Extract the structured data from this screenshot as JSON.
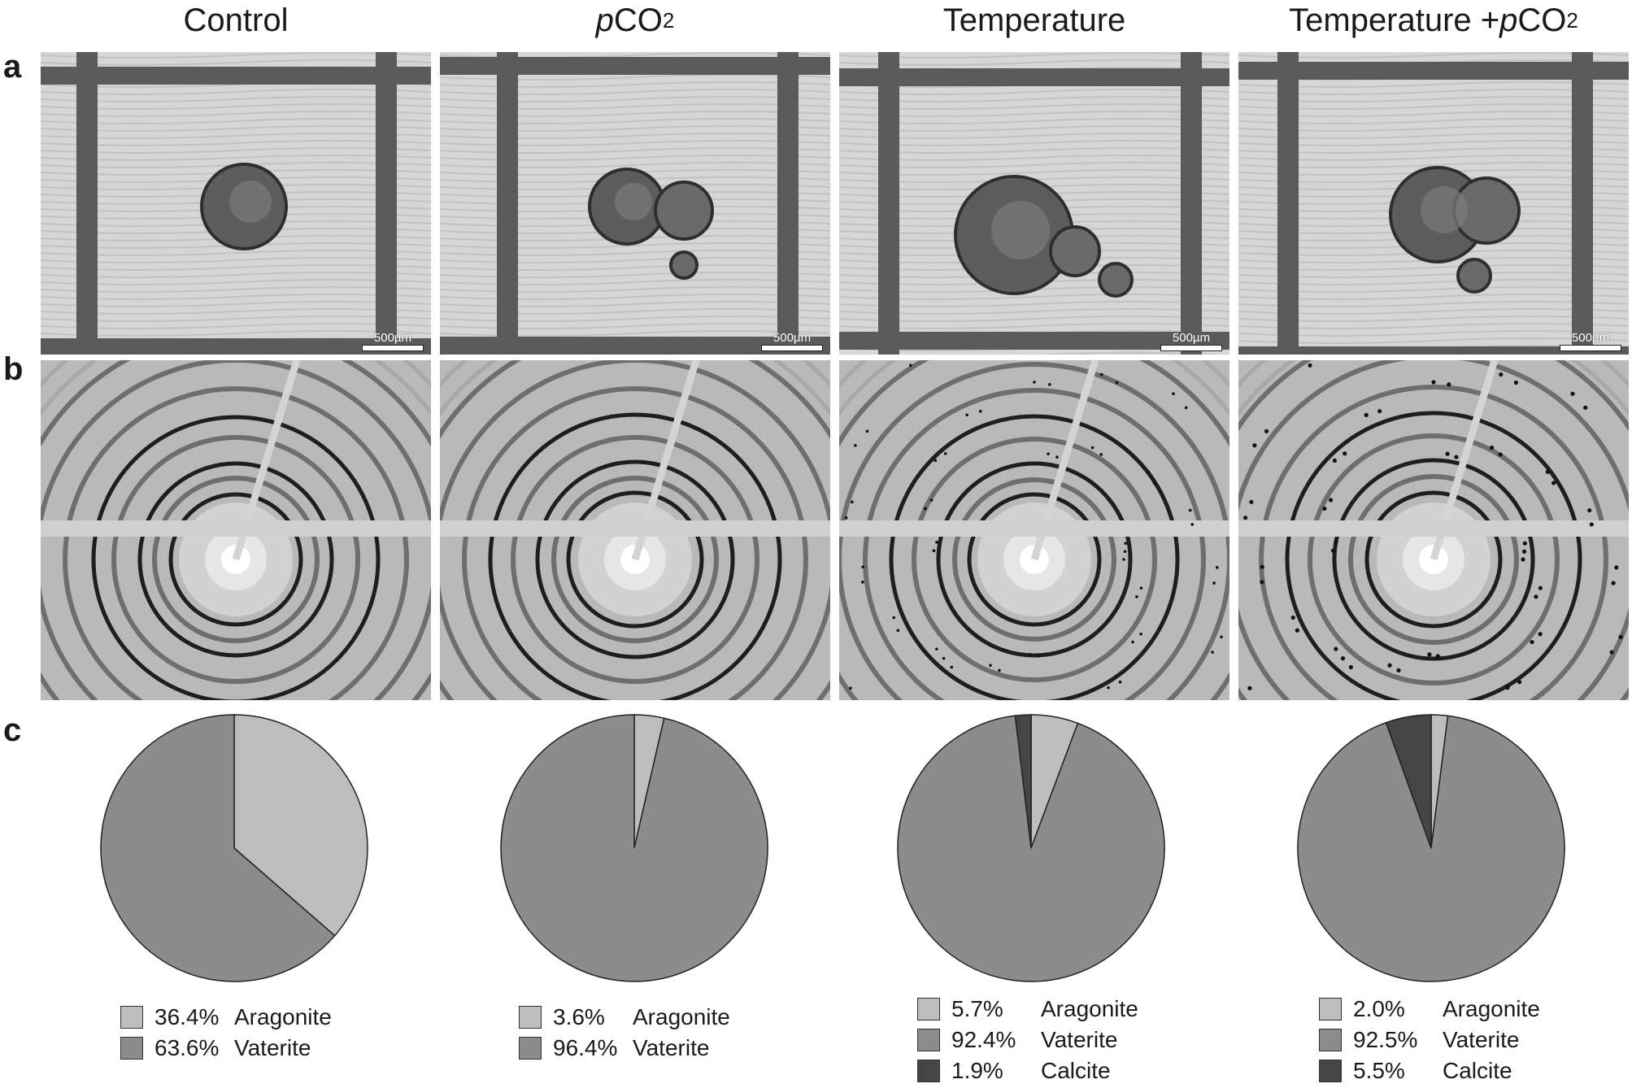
{
  "columns": [
    {
      "title_parts": [
        {
          "text": "Control",
          "italic": false
        }
      ],
      "sub": ""
    },
    {
      "title_parts": [
        {
          "text": "p",
          "italic": true
        },
        {
          "text": "CO",
          "italic": false
        }
      ],
      "sub": "2"
    },
    {
      "title_parts": [
        {
          "text": "Temperature",
          "italic": false
        }
      ],
      "sub": ""
    },
    {
      "title_parts": [
        {
          "text": "Temperature + ",
          "italic": false
        },
        {
          "text": "p",
          "italic": true
        },
        {
          "text": "CO",
          "italic": false
        }
      ],
      "sub": "2"
    }
  ],
  "row_labels": {
    "a": "a",
    "b": "b",
    "c": "c"
  },
  "scale_bar": "500µm",
  "colors": {
    "aragonite": "#bdbdbd",
    "vaterite": "#8c8c8c",
    "calcite": "#454545"
  },
  "chart_data": [
    {
      "type": "pie",
      "title": "",
      "slices": [
        {
          "label": "Aragonite",
          "pct_text": "36.4%",
          "value": 36.4,
          "color": "#bdbdbd"
        },
        {
          "label": "Vaterite",
          "pct_text": "63.6%",
          "value": 63.6,
          "color": "#8c8c8c"
        }
      ]
    },
    {
      "type": "pie",
      "title": "",
      "slices": [
        {
          "label": "Aragonite",
          "pct_text": "3.6%",
          "value": 3.6,
          "color": "#bdbdbd"
        },
        {
          "label": "Vaterite",
          "pct_text": "96.4%",
          "value": 96.4,
          "color": "#8c8c8c"
        }
      ]
    },
    {
      "type": "pie",
      "title": "",
      "slices": [
        {
          "label": "Aragonite",
          "pct_text": "5.7%",
          "value": 5.7,
          "color": "#bdbdbd"
        },
        {
          "label": "Vaterite",
          "pct_text": "92.4%",
          "value": 92.4,
          "color": "#8c8c8c"
        },
        {
          "label": "Calcite",
          "pct_text": "1.9%",
          "value": 1.9,
          "color": "#454545"
        }
      ]
    },
    {
      "type": "pie",
      "title": "",
      "slices": [
        {
          "label": "Aragonite",
          "pct_text": "2.0%",
          "value": 2.0,
          "color": "#bdbdbd"
        },
        {
          "label": "Vaterite",
          "pct_text": "92.5%",
          "value": 92.5,
          "color": "#8c8c8c"
        },
        {
          "label": "Calcite",
          "pct_text": "5.5%",
          "value": 5.5,
          "color": "#454545"
        }
      ]
    }
  ]
}
